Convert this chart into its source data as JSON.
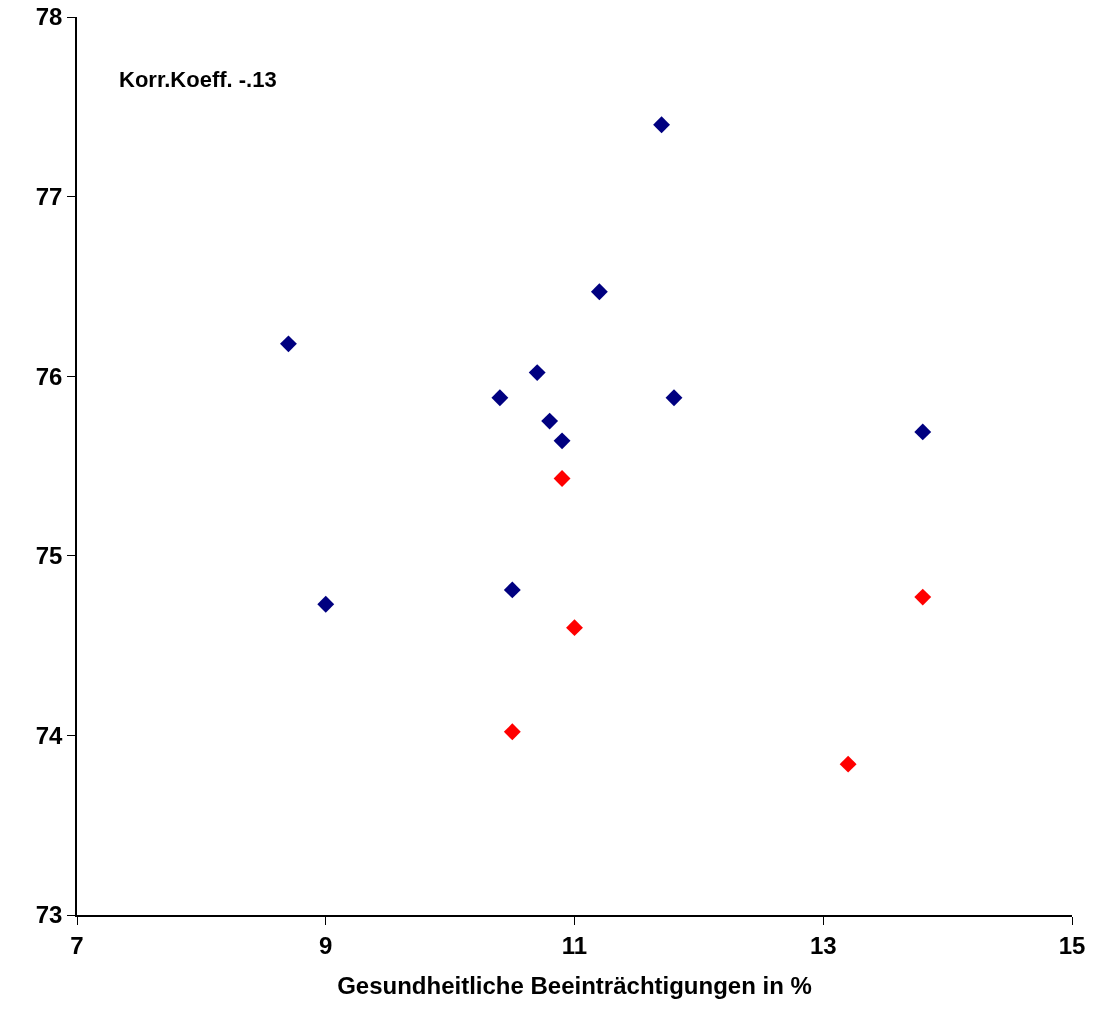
{
  "chart_data": {
    "type": "scatter",
    "xlabel": "Gesundheitliche Beeinträchtigungen in %",
    "annotations": [
      "Korr.Koeff. -.13"
    ],
    "series": [
      {
        "color": "#000080",
        "x": [
          8.7,
          9.0,
          10.4,
          10.7,
          10.8,
          10.9,
          10.5,
          11.2,
          11.7,
          11.8,
          13.8
        ],
        "values": [
          76.18,
          74.73,
          75.88,
          76.02,
          75.75,
          75.64,
          74.81,
          76.47,
          77.4,
          75.88,
          75.69
        ]
      },
      {
        "color": "#ff0000",
        "x": [
          10.9,
          11.0,
          10.5,
          13.2,
          13.8
        ],
        "values": [
          75.43,
          74.6,
          74.02,
          73.84,
          74.77
        ]
      }
    ],
    "xlim": [
      7,
      15
    ],
    "xticks": [
      7,
      9,
      11,
      13,
      15
    ],
    "ylim": [
      73,
      78
    ],
    "yticks": [
      73,
      74,
      75,
      76,
      77,
      78
    ],
    "grid": false,
    "marker": "diamond"
  }
}
